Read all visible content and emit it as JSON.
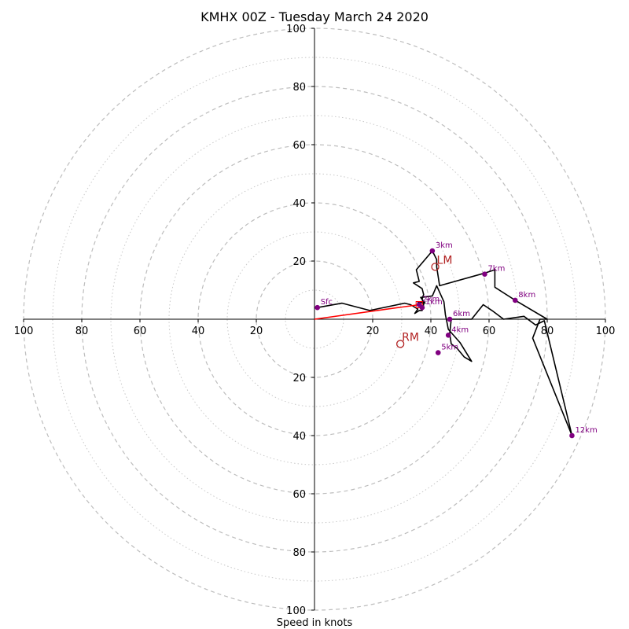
{
  "chart_data": {
    "type": "hodograph",
    "title": "KMHX 00Z - Tuesday March 24 2020",
    "xlabel": "Speed in knots",
    "rings_major": [
      20,
      40,
      60,
      80,
      100
    ],
    "rings_minor": [
      10,
      30,
      50,
      70,
      90
    ],
    "range": [
      -100,
      100
    ],
    "x_tick_labels": [
      {
        "value": -100,
        "label": "100"
      },
      {
        "value": -80,
        "label": "80"
      },
      {
        "value": -60,
        "label": "60"
      },
      {
        "value": -40,
        "label": "40"
      },
      {
        "value": -20,
        "label": "20"
      },
      {
        "value": 20,
        "label": "20"
      },
      {
        "value": 40,
        "label": "40"
      },
      {
        "value": 60,
        "label": "60"
      },
      {
        "value": 80,
        "label": "80"
      },
      {
        "value": 100,
        "label": "100"
      }
    ],
    "y_tick_labels": [
      {
        "value": 100,
        "label": "100"
      },
      {
        "value": 80,
        "label": "80"
      },
      {
        "value": 60,
        "label": "60"
      },
      {
        "value": 40,
        "label": "40"
      },
      {
        "value": 20,
        "label": "20"
      },
      {
        "value": -20,
        "label": "20"
      },
      {
        "value": -40,
        "label": "40"
      },
      {
        "value": -60,
        "label": "60"
      },
      {
        "value": -80,
        "label": "80"
      },
      {
        "value": -100,
        "label": "100"
      }
    ],
    "hodograph": {
      "color": "#000000",
      "points": [
        [
          1,
          4
        ],
        [
          9.5,
          5.5
        ],
        [
          19,
          3
        ],
        [
          31,
          5.5
        ],
        [
          33,
          5
        ],
        [
          35.5,
          3.5
        ],
        [
          34.5,
          2
        ],
        [
          36,
          3
        ],
        [
          37,
          3
        ],
        [
          37.5,
          5
        ],
        [
          37,
          7
        ],
        [
          37.5,
          8.5
        ],
        [
          37,
          10.5
        ],
        [
          34,
          12.5
        ],
        [
          36,
          13
        ],
        [
          35,
          17
        ],
        [
          40.5,
          23.5
        ],
        [
          42,
          20.5
        ],
        [
          42,
          18
        ],
        [
          43,
          11.5
        ],
        [
          59,
          16
        ],
        [
          62,
          17
        ],
        [
          62,
          11
        ],
        [
          69,
          6.5
        ],
        [
          80,
          0
        ],
        [
          77.5,
          0
        ],
        [
          75,
          -6.5
        ],
        [
          88.5,
          -40
        ],
        [
          79,
          -0.5
        ],
        [
          76,
          -2
        ],
        [
          72,
          1
        ],
        [
          65,
          0
        ],
        [
          61,
          3
        ],
        [
          58,
          5
        ],
        [
          54,
          0
        ],
        [
          51,
          0
        ],
        [
          47,
          0
        ],
        [
          46.5,
          -5
        ],
        [
          47,
          -8.5
        ],
        [
          49,
          -10
        ],
        [
          51.5,
          -13
        ],
        [
          54,
          -14.5
        ],
        [
          50,
          -8
        ],
        [
          46,
          -3.5
        ],
        [
          45.5,
          -1
        ],
        [
          45,
          1.5
        ],
        [
          44.5,
          6
        ],
        [
          42,
          11.5
        ],
        [
          40.5,
          8
        ],
        [
          36.5,
          7.5
        ],
        [
          38,
          5.5
        ],
        [
          35.5,
          6
        ],
        [
          37,
          4
        ]
      ]
    },
    "height_markers": {
      "color": "#800080",
      "points": [
        {
          "label": "Sfc",
          "u": 1,
          "v": 4
        },
        {
          "label": "1km",
          "u": 37,
          "v": 4
        },
        {
          "label": "2km",
          "u": 36,
          "v": 5
        },
        {
          "label": "3km",
          "u": 40.5,
          "v": 23.5
        },
        {
          "label": "4km",
          "u": 46,
          "v": -5.5
        },
        {
          "label": "5km",
          "u": 42.5,
          "v": -11.5
        },
        {
          "label": "6km",
          "u": 46.5,
          "v": 0
        },
        {
          "label": "7km",
          "u": 58.5,
          "v": 15.5
        },
        {
          "label": "8km",
          "u": 69,
          "v": 6.5
        },
        {
          "label": "12km",
          "u": 88.5,
          "v": -40
        }
      ]
    },
    "mean_wind_line": {
      "color": "#ff0000",
      "from": [
        0,
        0
      ],
      "to": [
        36,
        5
      ]
    },
    "storm_motions": {
      "color": "#b22222",
      "points": [
        {
          "label": "LM",
          "u": 41.5,
          "v": 18
        },
        {
          "label": "RM",
          "u": 29.5,
          "v": -8.5
        }
      ]
    }
  }
}
